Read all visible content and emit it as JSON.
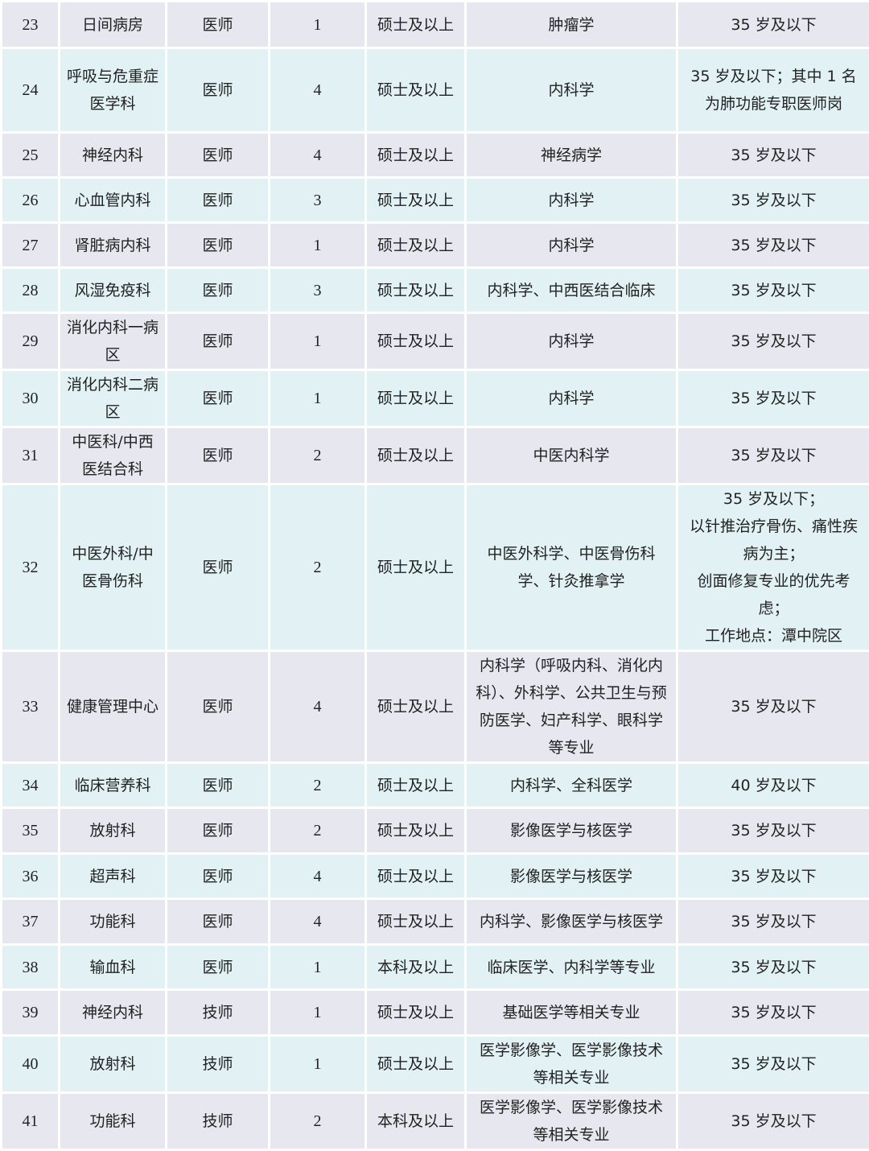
{
  "rows": [
    {
      "no": "23",
      "dept": "日间病房",
      "post": "医师",
      "count": "1",
      "edu": "硕士及以上",
      "major": "肿瘤学",
      "note": "35 岁及以下"
    },
    {
      "no": "24",
      "dept": "呼吸与危重症医学科",
      "post": "医师",
      "count": "4",
      "edu": "硕士及以上",
      "major": "内科学",
      "note": "35 岁及以下；其中 1 名为肺功能专职医师岗"
    },
    {
      "no": "25",
      "dept": "神经内科",
      "post": "医师",
      "count": "4",
      "edu": "硕士及以上",
      "major": "神经病学",
      "note": "35 岁及以下"
    },
    {
      "no": "26",
      "dept": "心血管内科",
      "post": "医师",
      "count": "3",
      "edu": "硕士及以上",
      "major": "内科学",
      "note": "35 岁及以下"
    },
    {
      "no": "27",
      "dept": "肾脏病内科",
      "post": "医师",
      "count": "1",
      "edu": "硕士及以上",
      "major": "内科学",
      "note": "35 岁及以下"
    },
    {
      "no": "28",
      "dept": "风湿免疫科",
      "post": "医师",
      "count": "3",
      "edu": "硕士及以上",
      "major": "内科学、中西医结合临床",
      "note": "35 岁及以下"
    },
    {
      "no": "29",
      "dept": "消化内科一病区",
      "post": "医师",
      "count": "1",
      "edu": "硕士及以上",
      "major": "内科学",
      "note": "35 岁及以下"
    },
    {
      "no": "30",
      "dept": "消化内科二病区",
      "post": "医师",
      "count": "1",
      "edu": "硕士及以上",
      "major": "内科学",
      "note": "35 岁及以下"
    },
    {
      "no": "31",
      "dept": "中医科/中西医结合科",
      "post": "医师",
      "count": "2",
      "edu": "硕士及以上",
      "major": "中医内科学",
      "note": "35 岁及以下"
    },
    {
      "no": "32",
      "dept": "中医外科/中医骨伤科",
      "post": "医师",
      "count": "2",
      "edu": "硕士及以上",
      "major": "中医外科学、中医骨伤科学、针灸推拿学",
      "note": "35 岁及以下；\n以针推治疗骨伤、痛性疾病为主；\n创面修复专业的优先考虑；\n工作地点：潭中院区"
    },
    {
      "no": "33",
      "dept": "健康管理中心",
      "post": "医师",
      "count": "4",
      "edu": "硕士及以上",
      "major": "内科学（呼吸内科、消化内科）、外科学、公共卫生与预防医学、妇产科学、眼科学等专业",
      "note": "35 岁及以下"
    },
    {
      "no": "34",
      "dept": "临床营养科",
      "post": "医师",
      "count": "2",
      "edu": "硕士及以上",
      "major": "内科学、全科医学",
      "note": "40 岁及以下"
    },
    {
      "no": "35",
      "dept": "放射科",
      "post": "医师",
      "count": "2",
      "edu": "硕士及以上",
      "major": "影像医学与核医学",
      "note": "35 岁及以下"
    },
    {
      "no": "36",
      "dept": "超声科",
      "post": "医师",
      "count": "4",
      "edu": "硕士及以上",
      "major": "影像医学与核医学",
      "note": "35 岁及以下"
    },
    {
      "no": "37",
      "dept": "功能科",
      "post": "医师",
      "count": "4",
      "edu": "硕士及以上",
      "major": "内科学、影像医学与核医学",
      "note": "35 岁及以下"
    },
    {
      "no": "38",
      "dept": "输血科",
      "post": "医师",
      "count": "1",
      "edu": "本科及以上",
      "major": "临床医学、内科学等专业",
      "note": "35 岁及以下"
    },
    {
      "no": "39",
      "dept": "神经内科",
      "post": "技师",
      "count": "1",
      "edu": "硕士及以上",
      "major": "基础医学等相关专业",
      "note": "35 岁及以下"
    },
    {
      "no": "40",
      "dept": "放射科",
      "post": "技师",
      "count": "1",
      "edu": "硕士及以上",
      "major": "医学影像学、医学影像技术等相关专业",
      "note": "35 岁及以下"
    },
    {
      "no": "41",
      "dept": "功能科",
      "post": "技师",
      "count": "2",
      "edu": "本科及以上",
      "major": "医学影像学、医学影像技术等相关专业",
      "note": "35 岁及以下"
    }
  ]
}
